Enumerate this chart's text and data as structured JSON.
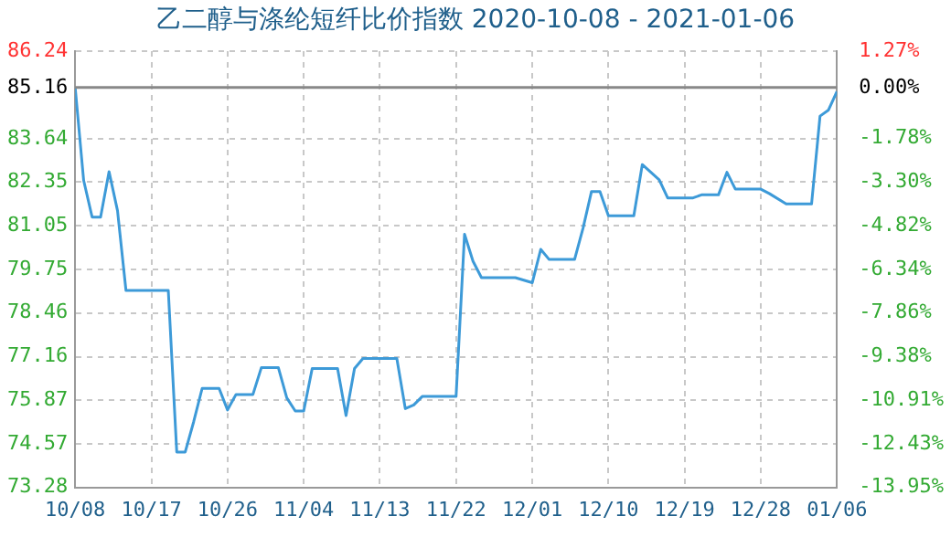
{
  "chart_data": {
    "type": "line",
    "title": "乙二醇与涤纶短纤比价指数 2020-10-08 - 2021-01-06",
    "x": [
      "2020-10-08",
      "2020-10-09",
      "2020-10-10",
      "2020-10-11",
      "2020-10-12",
      "2020-10-13",
      "2020-10-14",
      "2020-10-19",
      "2020-10-20",
      "2020-10-21",
      "2020-10-22",
      "2020-10-23",
      "2020-10-25",
      "2020-10-26",
      "2020-10-27",
      "2020-10-29",
      "2020-10-30",
      "2020-11-01",
      "2020-11-02",
      "2020-11-03",
      "2020-11-04",
      "2020-11-05",
      "2020-11-08",
      "2020-11-09",
      "2020-11-10",
      "2020-11-11",
      "2020-11-15",
      "2020-11-16",
      "2020-11-17",
      "2020-11-18",
      "2020-11-22",
      "2020-11-23",
      "2020-11-24",
      "2020-11-25",
      "2020-11-29",
      "2020-12-01",
      "2020-12-02",
      "2020-12-03",
      "2020-12-06",
      "2020-12-07",
      "2020-12-08",
      "2020-12-09",
      "2020-12-10",
      "2020-12-13",
      "2020-12-14",
      "2020-12-16",
      "2020-12-17",
      "2020-12-20",
      "2020-12-21",
      "2020-12-23",
      "2020-12-24",
      "2020-12-25",
      "2020-12-28",
      "2020-12-29",
      "2020-12-31",
      "2021-01-03",
      "2021-01-04",
      "2021-01-05",
      "2021-01-06"
    ],
    "series": [
      {
        "color": "#3d9ad8",
        "values": [
          85.16,
          82.4,
          81.31,
          81.31,
          82.66,
          81.5,
          79.13,
          79.13,
          74.33,
          74.33,
          75.23,
          76.22,
          76.22,
          75.58,
          76.04,
          76.04,
          76.84,
          76.84,
          75.94,
          75.55,
          75.55,
          76.81,
          76.81,
          75.41,
          76.81,
          77.11,
          77.11,
          75.62,
          75.73,
          75.98,
          75.98,
          80.8,
          80.0,
          79.51,
          79.51,
          79.36,
          80.35,
          80.05,
          80.05,
          80.98,
          82.07,
          82.07,
          81.35,
          81.35,
          82.87,
          82.42,
          81.88,
          81.88,
          81.97,
          81.97,
          82.64,
          82.14,
          82.14,
          82.01,
          81.7,
          81.7,
          84.31,
          84.49,
          85.04
        ]
      }
    ],
    "xlim": [
      "2020-10-08",
      "2021-01-06"
    ],
    "xticks": [
      {
        "value": "2020-10-08",
        "label": "10/08"
      },
      {
        "value": "2020-10-17",
        "label": "10/17"
      },
      {
        "value": "2020-10-26",
        "label": "10/26"
      },
      {
        "value": "2020-11-04",
        "label": "11/04"
      },
      {
        "value": "2020-11-13",
        "label": "11/13"
      },
      {
        "value": "2020-11-22",
        "label": "11/22"
      },
      {
        "value": "2020-12-01",
        "label": "12/01"
      },
      {
        "value": "2020-12-10",
        "label": "12/10"
      },
      {
        "value": "2020-12-19",
        "label": "12/19"
      },
      {
        "value": "2020-12-28",
        "label": "12/28"
      },
      {
        "value": "2021-01-06",
        "label": "01/06"
      }
    ],
    "ylim": [
      73.28,
      86.24
    ],
    "yticks": [
      73.28,
      74.57,
      75.87,
      77.16,
      78.46,
      79.75,
      81.05,
      82.35,
      83.64,
      85.16,
      86.24
    ],
    "y2lim": [
      -13.95,
      1.27
    ],
    "y2ticks": [
      {
        "value": -13.95,
        "label": "-13.95%"
      },
      {
        "value": -12.43,
        "label": "-12.43%"
      },
      {
        "value": -10.91,
        "label": "-10.91%"
      },
      {
        "value": -9.38,
        "label": "-9.38%"
      },
      {
        "value": -7.86,
        "label": "-7.86%"
      },
      {
        "value": -6.34,
        "label": "-6.34%"
      },
      {
        "value": -4.82,
        "label": "-4.82%"
      },
      {
        "value": -3.3,
        "label": "-3.30%"
      },
      {
        "value": -1.78,
        "label": "-1.78%"
      },
      {
        "value": 0,
        "label": "0.00%"
      },
      {
        "value": 1.27,
        "label": "1.27%"
      }
    ],
    "ref_lines": [
      {
        "axis": "y",
        "value": 85.16,
        "color": "#888888"
      }
    ],
    "grid": true,
    "marker": "none",
    "line_style": "solid"
  }
}
